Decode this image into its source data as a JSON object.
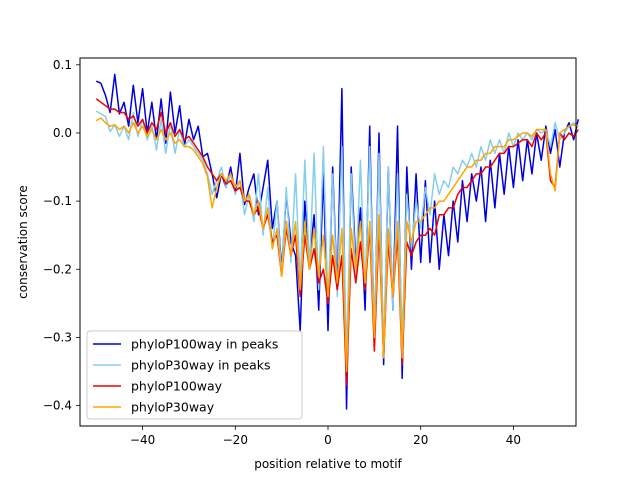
{
  "chart_data": {
    "type": "line",
    "title": "",
    "xlabel": "position relative to motif",
    "ylabel": "conservation score",
    "xlim": [
      -53.5,
      53.5
    ],
    "ylim": [
      -0.43,
      0.11
    ],
    "xticks": [
      -40,
      -20,
      0,
      20,
      40
    ],
    "yticks": [
      0.1,
      0.0,
      -0.1,
      -0.2,
      -0.3,
      -0.4
    ],
    "xtick_labels": [
      "−40",
      "−20",
      "0",
      "20",
      "40"
    ],
    "ytick_labels": [
      "0.1",
      "0.0",
      "−0.1",
      "−0.2",
      "−0.3",
      "−0.4"
    ],
    "grid": false,
    "legend_position": "lower-left",
    "x_start": -50,
    "x_step": 1,
    "series": [
      {
        "name": "phyloP100way in peaks",
        "color": "#0000dd",
        "values": [
          0.076,
          0.073,
          0.055,
          0.03,
          0.086,
          0.028,
          0.045,
          0.01,
          0.07,
          0.015,
          0.065,
          0.0,
          0.045,
          -0.01,
          0.05,
          -0.015,
          0.06,
          0.0,
          0.04,
          -0.02,
          0.02,
          -0.01,
          0.01,
          -0.035,
          -0.03,
          -0.06,
          -0.095,
          -0.06,
          -0.08,
          -0.05,
          -0.09,
          -0.03,
          -0.105,
          -0.08,
          -0.06,
          -0.12,
          -0.08,
          -0.04,
          -0.14,
          -0.1,
          -0.2,
          -0.09,
          -0.16,
          -0.18,
          -0.29,
          -0.1,
          -0.19,
          -0.12,
          -0.26,
          -0.06,
          -0.29,
          -0.05,
          -0.23,
          0.065,
          -0.405,
          -0.05,
          -0.19,
          -0.11,
          -0.26,
          0.01,
          -0.31,
          0.0,
          -0.34,
          -0.05,
          -0.26,
          0.01,
          -0.36,
          -0.05,
          -0.2,
          -0.06,
          -0.19,
          -0.07,
          -0.19,
          -0.1,
          -0.2,
          -0.12,
          -0.18,
          -0.1,
          -0.16,
          -0.07,
          -0.13,
          -0.06,
          -0.1,
          -0.05,
          -0.13,
          -0.04,
          -0.11,
          -0.03,
          -0.09,
          -0.02,
          -0.08,
          -0.01,
          -0.07,
          -0.01,
          -0.06,
          0.0,
          -0.04,
          0.01,
          -0.03,
          0.005,
          -0.05,
          0.0,
          0.015,
          -0.01,
          0.02
        ]
      },
      {
        "name": "phyloP30way in peaks",
        "color": "#87ceeb",
        "values": [
          0.032,
          0.028,
          0.024,
          0.002,
          0.012,
          -0.005,
          0.01,
          -0.01,
          0.03,
          -0.005,
          0.02,
          -0.01,
          0.01,
          -0.025,
          0.02,
          -0.03,
          0.015,
          -0.03,
          0.005,
          -0.02,
          -0.01,
          -0.02,
          -0.03,
          -0.04,
          -0.06,
          -0.09,
          -0.07,
          -0.05,
          -0.08,
          -0.06,
          -0.09,
          -0.07,
          -0.12,
          -0.09,
          -0.13,
          -0.06,
          -0.15,
          -0.08,
          -0.17,
          -0.1,
          -0.21,
          -0.08,
          -0.19,
          -0.06,
          -0.22,
          -0.04,
          -0.2,
          -0.03,
          -0.23,
          -0.02,
          -0.25,
          -0.06,
          -0.24,
          -0.02,
          -0.33,
          -0.06,
          -0.21,
          -0.04,
          -0.23,
          -0.02,
          -0.3,
          -0.03,
          -0.32,
          -0.05,
          -0.26,
          -0.06,
          -0.3,
          -0.09,
          -0.17,
          -0.1,
          -0.14,
          -0.08,
          -0.12,
          -0.06,
          -0.09,
          -0.07,
          -0.08,
          -0.05,
          -0.06,
          -0.04,
          -0.05,
          -0.03,
          -0.05,
          -0.02,
          -0.04,
          -0.01,
          -0.03,
          -0.01,
          -0.03,
          0.0,
          -0.02,
          0.0,
          -0.01,
          0.0,
          -0.01,
          0.005,
          0.0,
          0.005,
          -0.02,
          0.015,
          -0.01,
          0.0,
          0.01,
          0.015,
          0.01
        ]
      },
      {
        "name": "phyloP100way",
        "color": "#ee0000",
        "values": [
          0.05,
          0.045,
          0.04,
          0.035,
          0.035,
          0.03,
          0.03,
          0.02,
          0.025,
          0.01,
          0.02,
          0.0,
          0.015,
          0.005,
          0.03,
          0.0,
          0.015,
          -0.005,
          0.005,
          -0.01,
          -0.005,
          -0.015,
          -0.025,
          -0.035,
          -0.05,
          -0.06,
          -0.07,
          -0.06,
          -0.075,
          -0.07,
          -0.085,
          -0.08,
          -0.1,
          -0.1,
          -0.12,
          -0.11,
          -0.14,
          -0.12,
          -0.16,
          -0.15,
          -0.21,
          -0.14,
          -0.18,
          -0.15,
          -0.24,
          -0.15,
          -0.2,
          -0.17,
          -0.22,
          -0.2,
          -0.25,
          -0.18,
          -0.23,
          -0.18,
          -0.37,
          -0.17,
          -0.22,
          -0.16,
          -0.23,
          -0.14,
          -0.32,
          -0.14,
          -0.33,
          -0.16,
          -0.24,
          -0.15,
          -0.34,
          -0.16,
          -0.18,
          -0.16,
          -0.15,
          -0.15,
          -0.14,
          -0.15,
          -0.12,
          -0.12,
          -0.11,
          -0.11,
          -0.09,
          -0.08,
          -0.08,
          -0.07,
          -0.06,
          -0.06,
          -0.05,
          -0.05,
          -0.04,
          -0.03,
          -0.03,
          -0.02,
          -0.02,
          -0.015,
          -0.01,
          -0.01,
          -0.02,
          0.0,
          -0.01,
          0.0,
          -0.07,
          -0.08,
          0.0,
          -0.01,
          0.0,
          -0.005,
          0.005
        ]
      },
      {
        "name": "phyloP30way",
        "color": "#ffa500",
        "values": [
          0.018,
          0.022,
          0.015,
          0.01,
          0.012,
          0.005,
          0.01,
          0.0,
          0.015,
          0.0,
          0.01,
          -0.005,
          0.005,
          -0.01,
          0.005,
          -0.01,
          0.0,
          -0.015,
          -0.01,
          -0.02,
          -0.02,
          -0.025,
          -0.035,
          -0.045,
          -0.065,
          -0.11,
          -0.08,
          -0.06,
          -0.07,
          -0.06,
          -0.08,
          -0.07,
          -0.1,
          -0.09,
          -0.12,
          -0.1,
          -0.14,
          -0.11,
          -0.17,
          -0.14,
          -0.21,
          -0.13,
          -0.18,
          -0.13,
          -0.23,
          -0.13,
          -0.2,
          -0.14,
          -0.21,
          -0.15,
          -0.24,
          -0.15,
          -0.22,
          -0.14,
          -0.35,
          -0.14,
          -0.2,
          -0.13,
          -0.22,
          -0.13,
          -0.3,
          -0.12,
          -0.33,
          -0.14,
          -0.24,
          -0.13,
          -0.33,
          -0.13,
          -0.16,
          -0.13,
          -0.13,
          -0.12,
          -0.11,
          -0.11,
          -0.1,
          -0.1,
          -0.09,
          -0.08,
          -0.07,
          -0.06,
          -0.05,
          -0.05,
          -0.04,
          -0.04,
          -0.03,
          -0.03,
          -0.02,
          -0.02,
          -0.02,
          -0.01,
          -0.01,
          -0.005,
          0.0,
          0.0,
          -0.005,
          0.005,
          0.005,
          0.005,
          -0.06,
          -0.085,
          0.0,
          0.005,
          0.01,
          0.012,
          0.01
        ]
      }
    ]
  }
}
